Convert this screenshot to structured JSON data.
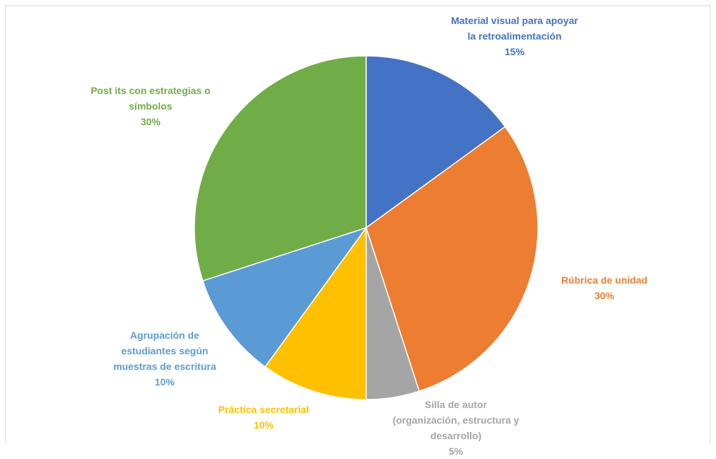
{
  "chart_data": {
    "type": "pie",
    "categories": [
      "Material visual para apoyar la retroalimentación",
      "Rúbrica de unidad",
      "Silla de autor (organización, estructura y desarrollo)",
      "Práctica secretarial",
      "Agrupación de estudiantes según muestras de escritura",
      "Post its con estrategias o símbolos"
    ],
    "values": [
      15,
      30,
      5,
      10,
      10,
      30
    ],
    "value_labels": [
      "15%",
      "30%",
      "5%",
      "10%",
      "10%",
      "30%"
    ],
    "colors": [
      "#4472c4",
      "#ed7d31",
      "#a5a5a5",
      "#ffc000",
      "#5b9bd5",
      "#70ad47"
    ]
  }
}
